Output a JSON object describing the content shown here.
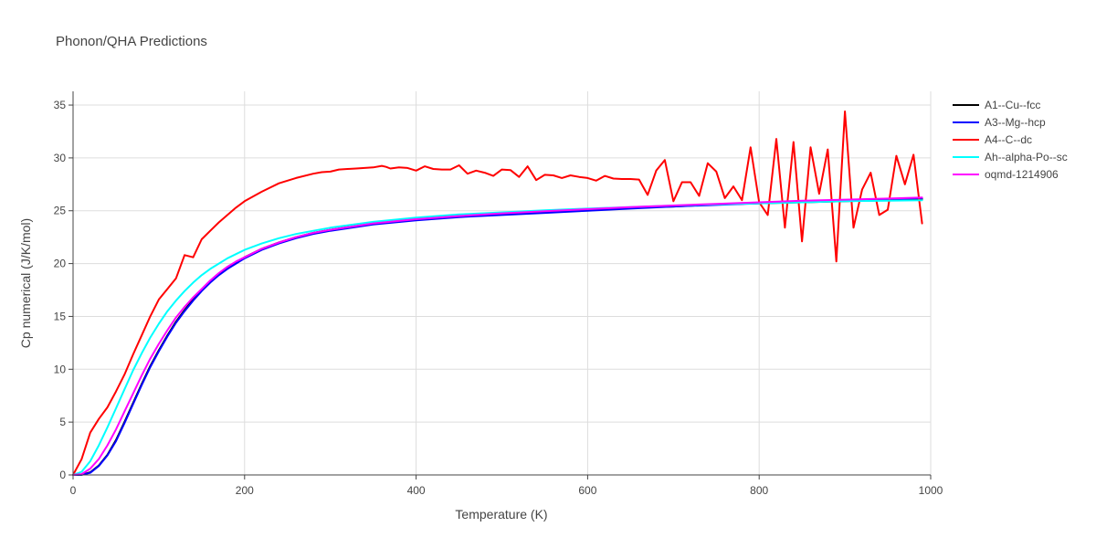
{
  "chart_data": {
    "type": "line",
    "title": "Phonon/QHA Predictions",
    "xlabel": "Temperature (K)",
    "ylabel": "Cp numerical (J/K/mol)",
    "xlim": [
      0,
      1000
    ],
    "ylim": [
      0,
      36.3
    ],
    "xticks": [
      0,
      200,
      400,
      600,
      800,
      1000
    ],
    "yticks": [
      0,
      5,
      10,
      15,
      20,
      25,
      30,
      35
    ],
    "grid": true,
    "legend_position": "top-right, outside plot",
    "series": [
      {
        "name": "A1--Cu--fcc",
        "color": "#000000",
        "x": [
          0,
          10,
          20,
          30,
          40,
          50,
          60,
          70,
          80,
          90,
          100,
          110,
          120,
          130,
          140,
          150,
          160,
          170,
          180,
          190,
          200,
          220,
          240,
          260,
          280,
          300,
          350,
          400,
          450,
          500,
          550,
          600,
          650,
          700,
          750,
          800,
          850,
          900,
          950,
          990
        ],
        "y": [
          0,
          0.02,
          0.25,
          0.9,
          1.9,
          3.3,
          5.0,
          6.8,
          8.6,
          10.3,
          11.8,
          13.2,
          14.5,
          15.6,
          16.6,
          17.5,
          18.3,
          19.0,
          19.6,
          20.1,
          20.6,
          21.4,
          22.0,
          22.5,
          22.9,
          23.2,
          23.8,
          24.2,
          24.5,
          24.7,
          24.9,
          25.1,
          25.3,
          25.4,
          25.6,
          25.7,
          25.8,
          25.9,
          26.0,
          26.1
        ]
      },
      {
        "name": "A3--Mg--hcp",
        "color": "#0000ff",
        "x": [
          0,
          10,
          20,
          30,
          40,
          50,
          60,
          70,
          80,
          90,
          100,
          110,
          120,
          130,
          140,
          150,
          160,
          170,
          180,
          190,
          200,
          220,
          240,
          260,
          280,
          300,
          350,
          400,
          450,
          500,
          550,
          600,
          650,
          700,
          750,
          800,
          850,
          900,
          950,
          990
        ],
        "y": [
          0,
          0.01,
          0.2,
          0.85,
          1.85,
          3.2,
          4.9,
          6.7,
          8.5,
          10.2,
          11.7,
          13.1,
          14.4,
          15.5,
          16.5,
          17.4,
          18.2,
          18.9,
          19.5,
          20.0,
          20.5,
          21.3,
          21.9,
          22.4,
          22.8,
          23.1,
          23.7,
          24.1,
          24.4,
          24.6,
          24.8,
          25.0,
          25.2,
          25.4,
          25.55,
          25.7,
          25.85,
          26.0,
          26.1,
          26.2
        ]
      },
      {
        "name": "A4--C--dc",
        "color": "#ff0000",
        "x": [
          0,
          10,
          20,
          30,
          40,
          50,
          60,
          70,
          80,
          90,
          100,
          110,
          120,
          130,
          140,
          150,
          160,
          170,
          180,
          190,
          200,
          220,
          240,
          260,
          280,
          290,
          300,
          310,
          320,
          330,
          340,
          350,
          360,
          365,
          370,
          380,
          390,
          400,
          410,
          420,
          430,
          440,
          450,
          460,
          470,
          480,
          490,
          500,
          510,
          520,
          530,
          540,
          550,
          560,
          570,
          580,
          590,
          600,
          610,
          620,
          630,
          640,
          650,
          660,
          670,
          680,
          690,
          700,
          710,
          720,
          730,
          740,
          750,
          760,
          770,
          780,
          790,
          800,
          810,
          820,
          830,
          840,
          850,
          860,
          870,
          880,
          890,
          900,
          910,
          920,
          930,
          940,
          950,
          960,
          970,
          980,
          990
        ],
        "y": [
          0,
          1.5,
          4.0,
          5.3,
          6.4,
          7.9,
          9.5,
          11.4,
          13.2,
          15.0,
          16.6,
          17.6,
          18.6,
          20.8,
          20.6,
          22.3,
          23.1,
          23.9,
          24.6,
          25.3,
          25.9,
          26.8,
          27.6,
          28.1,
          28.5,
          28.65,
          28.7,
          28.9,
          28.95,
          29.0,
          29.05,
          29.1,
          29.25,
          29.15,
          29.0,
          29.1,
          29.05,
          28.8,
          29.2,
          28.95,
          28.9,
          28.9,
          29.3,
          28.5,
          28.8,
          28.6,
          28.3,
          28.9,
          28.85,
          28.2,
          29.2,
          27.9,
          28.4,
          28.35,
          28.1,
          28.35,
          28.2,
          28.1,
          27.85,
          28.3,
          28.05,
          28.0,
          28.0,
          27.95,
          26.5,
          28.8,
          29.8,
          25.9,
          27.7,
          27.7,
          26.4,
          29.5,
          28.7,
          26.2,
          27.3,
          26.0,
          31.0,
          25.8,
          24.6,
          31.8,
          23.4,
          31.5,
          22.1,
          31.0,
          26.6,
          30.8,
          20.2,
          34.4,
          23.4,
          27.0,
          28.6,
          24.6,
          25.1,
          30.2,
          27.5,
          30.3,
          23.8
        ]
      },
      {
        "name": "Ah--alpha-Po--sc",
        "color": "#00ffff",
        "x": [
          0,
          10,
          20,
          30,
          40,
          50,
          60,
          70,
          80,
          90,
          100,
          110,
          120,
          130,
          140,
          150,
          160,
          170,
          180,
          190,
          200,
          220,
          240,
          260,
          280,
          300,
          350,
          400,
          450,
          500,
          550,
          600,
          650,
          700,
          750,
          800,
          850,
          900,
          950,
          990
        ],
        "y": [
          0,
          0.3,
          1.3,
          2.8,
          4.5,
          6.3,
          8.1,
          9.9,
          11.5,
          13.0,
          14.3,
          15.5,
          16.5,
          17.4,
          18.2,
          18.9,
          19.5,
          20.0,
          20.5,
          20.9,
          21.3,
          21.9,
          22.4,
          22.8,
          23.1,
          23.4,
          23.95,
          24.35,
          24.65,
          24.85,
          25.05,
          25.2,
          25.35,
          25.5,
          25.6,
          25.7,
          25.8,
          25.9,
          25.95,
          26.0
        ]
      },
      {
        "name": "oqmd-1214906",
        "color": "#ff00ff",
        "x": [
          0,
          10,
          20,
          30,
          40,
          50,
          60,
          70,
          80,
          90,
          100,
          110,
          120,
          130,
          140,
          150,
          160,
          170,
          180,
          190,
          200,
          220,
          240,
          260,
          280,
          300,
          350,
          400,
          450,
          500,
          550,
          600,
          650,
          700,
          750,
          800,
          850,
          900,
          950,
          990
        ],
        "y": [
          0,
          0.08,
          0.6,
          1.5,
          2.8,
          4.3,
          6.0,
          7.7,
          9.4,
          11.0,
          12.4,
          13.7,
          14.9,
          15.9,
          16.8,
          17.6,
          18.4,
          19.1,
          19.7,
          20.2,
          20.6,
          21.4,
          22.0,
          22.5,
          22.9,
          23.2,
          23.8,
          24.2,
          24.5,
          24.75,
          24.95,
          25.15,
          25.35,
          25.5,
          25.65,
          25.8,
          25.95,
          26.05,
          26.15,
          26.25
        ]
      }
    ]
  }
}
